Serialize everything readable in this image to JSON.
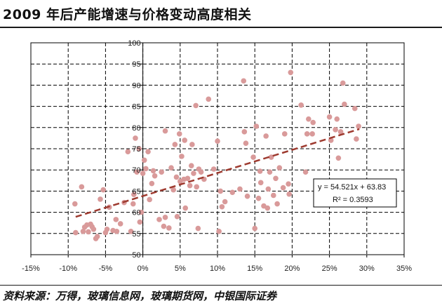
{
  "title": "2009 年后产能增速与价格变动高度相关",
  "source": "资料来源：万得，玻璃信息网，玻璃期货网，中银国际证券",
  "chart_data": {
    "type": "scatter",
    "title": "2009 年后产能增速与价格变动高度相关",
    "xlabel": "",
    "ylabel": "",
    "xlim": [
      -0.15,
      0.35
    ],
    "ylim": [
      50,
      100
    ],
    "grid": true,
    "x_ticks": [
      "-15%",
      "-10%",
      "-5%",
      "0%",
      "5%",
      "10%",
      "15%",
      "20%",
      "25%",
      "30%",
      "35%"
    ],
    "y_ticks": [
      "50",
      "55",
      "60",
      "65",
      "70",
      "75",
      "80",
      "85",
      "90",
      "95",
      "100"
    ],
    "marker_color": "#d99a9a",
    "trendline": {
      "equation": "y = 54.521x  + 63.83",
      "r2": "R² = 0.3593",
      "slope": 54.521,
      "intercept": 63.83,
      "x_range": [
        -0.09,
        0.29
      ],
      "color": "#9e3a2f",
      "style": "dashed"
    },
    "series": [
      {
        "points": [
          [
            -0.091,
            62.0
          ],
          [
            -0.09,
            55.2
          ],
          [
            -0.082,
            66.0
          ],
          [
            -0.08,
            55.5
          ],
          [
            -0.078,
            56.5
          ],
          [
            -0.075,
            57.0
          ],
          [
            -0.073,
            55.4
          ],
          [
            -0.07,
            57.2
          ],
          [
            -0.068,
            56.6
          ],
          [
            -0.066,
            56.0
          ],
          [
            -0.063,
            53.8
          ],
          [
            -0.061,
            54.3
          ],
          [
            -0.057,
            63.1
          ],
          [
            -0.053,
            65.3
          ],
          [
            -0.05,
            55.2
          ],
          [
            -0.048,
            56.0
          ],
          [
            -0.045,
            61.2
          ],
          [
            -0.04,
            55.7
          ],
          [
            -0.036,
            58.3
          ],
          [
            -0.035,
            55.5
          ],
          [
            -0.03,
            57.3
          ],
          [
            -0.025,
            62.3
          ],
          [
            -0.02,
            74.3
          ],
          [
            -0.016,
            55.5
          ],
          [
            -0.013,
            62.0
          ],
          [
            -0.012,
            64.2
          ],
          [
            -0.01,
            77.5
          ],
          [
            -0.008,
            69.5
          ],
          [
            -0.005,
            75.0
          ],
          [
            -0.004,
            57.7
          ],
          [
            -0.002,
            60.0
          ],
          [
            0.0,
            69.2
          ],
          [
            0.002,
            72.3
          ],
          [
            0.004,
            70.3
          ],
          [
            0.007,
            74.3
          ],
          [
            0.009,
            63.0
          ],
          [
            0.012,
            66.8
          ],
          [
            0.014,
            69.8
          ],
          [
            0.016,
            68.6
          ],
          [
            0.022,
            58.3
          ],
          [
            0.025,
            69.5
          ],
          [
            0.028,
            56.7
          ],
          [
            0.03,
            58.8
          ],
          [
            0.03,
            79.2
          ],
          [
            0.035,
            56.3
          ],
          [
            0.038,
            70.5
          ],
          [
            0.041,
            65.3
          ],
          [
            0.043,
            76.0
          ],
          [
            0.045,
            68.3
          ],
          [
            0.046,
            59.0
          ],
          [
            0.049,
            78.5
          ],
          [
            0.05,
            67.3
          ],
          [
            0.052,
            73.2
          ],
          [
            0.055,
            67.8
          ],
          [
            0.056,
            77.0
          ],
          [
            0.057,
            61.0
          ],
          [
            0.06,
            68.0
          ],
          [
            0.063,
            66.3
          ],
          [
            0.065,
            71.0
          ],
          [
            0.066,
            76.0
          ],
          [
            0.068,
            69.2
          ],
          [
            0.071,
            85.2
          ],
          [
            0.072,
            66.0
          ],
          [
            0.074,
            56.2
          ],
          [
            0.075,
            70.2
          ],
          [
            0.078,
            69.5
          ],
          [
            0.082,
            67.8
          ],
          [
            0.088,
            86.7
          ],
          [
            0.095,
            70.2
          ],
          [
            0.1,
            76.8
          ],
          [
            0.102,
            55.5
          ],
          [
            0.104,
            65.0
          ],
          [
            0.106,
            61.3
          ],
          [
            0.11,
            62.5
          ],
          [
            0.12,
            64.7
          ],
          [
            0.13,
            65.5
          ],
          [
            0.135,
            91.0
          ],
          [
            0.136,
            79.0
          ],
          [
            0.138,
            76.3
          ],
          [
            0.14,
            63.8
          ],
          [
            0.148,
            73.0
          ],
          [
            0.15,
            56.2
          ],
          [
            0.152,
            80.3
          ],
          [
            0.155,
            63.3
          ],
          [
            0.157,
            69.7
          ],
          [
            0.158,
            67.0
          ],
          [
            0.162,
            61.5
          ],
          [
            0.165,
            78.0
          ],
          [
            0.167,
            61.0
          ],
          [
            0.168,
            65.5
          ],
          [
            0.17,
            69.5
          ],
          [
            0.172,
            73.0
          ],
          [
            0.175,
            64.0
          ],
          [
            0.178,
            68.0
          ],
          [
            0.18,
            62.0
          ],
          [
            0.183,
            70.5
          ],
          [
            0.188,
            65.8
          ],
          [
            0.19,
            78.5
          ],
          [
            0.195,
            66.7
          ],
          [
            0.196,
            64.3
          ],
          [
            0.198,
            93.0
          ],
          [
            0.212,
            85.3
          ],
          [
            0.218,
            69.5
          ],
          [
            0.22,
            78.5
          ],
          [
            0.222,
            82.0
          ],
          [
            0.227,
            78.5
          ],
          [
            0.228,
            81.2
          ],
          [
            0.25,
            82.5
          ],
          [
            0.252,
            77.0
          ],
          [
            0.258,
            79.5
          ],
          [
            0.26,
            82.0
          ],
          [
            0.262,
            72.8
          ],
          [
            0.265,
            79.0
          ],
          [
            0.268,
            90.5
          ],
          [
            0.27,
            85.5
          ],
          [
            0.284,
            84.5
          ],
          [
            0.286,
            77.3
          ],
          [
            0.289,
            80.3
          ]
        ]
      }
    ]
  }
}
